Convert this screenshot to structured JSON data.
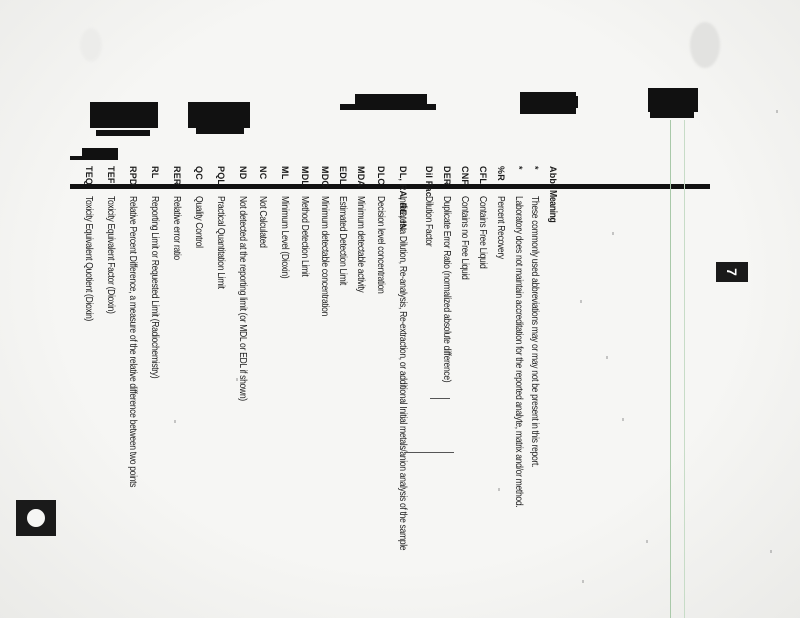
{
  "page": {
    "page_number": "7"
  },
  "table": {
    "header_abbr": "Abb",
    "header_meaning": "Meaning",
    "rows": [
      {
        "abbr": "*",
        "meaning": "These commonly used abbreviations may or may not be present in this report."
      },
      {
        "abbr": "*",
        "meaning": "Laboratory does not maintain accreditation for the reported analyte, matrix and/or method."
      },
      {
        "abbr": "%R",
        "meaning": "Percent Recovery"
      },
      {
        "abbr": "CFL",
        "meaning": "Contains Free Liquid"
      },
      {
        "abbr": "CNF",
        "meaning": "Contains no Free Liquid"
      },
      {
        "abbr": "DER",
        "meaning": "Duplicate Error Ratio (normalized absolute difference)"
      },
      {
        "abbr": "Dil Fac",
        "meaning": "Dilution Factor"
      },
      {
        "abbr": "DL, RA, RE, IN",
        "meaning": "Indicates a Dilution, Re-analysis, Re-extraction, or additional Initial metals/anion analysis of the sample"
      },
      {
        "abbr": "DLC",
        "meaning": "Decision level concentration"
      },
      {
        "abbr": "MDA",
        "meaning": "Minimum detectable activity"
      },
      {
        "abbr": "EDL",
        "meaning": "Estimated Detection Limit"
      },
      {
        "abbr": "MDC",
        "meaning": "Minimum detectable concentration"
      },
      {
        "abbr": "MDL",
        "meaning": "Method Detection Limit"
      },
      {
        "abbr": "ML",
        "meaning": "Minimum Level (Dioxin)"
      },
      {
        "abbr": "NC",
        "meaning": "Not Calculated"
      },
      {
        "abbr": "ND",
        "meaning": "Not detected at the reporting limit (or MDL or EDL if shown)"
      },
      {
        "abbr": "PQL",
        "meaning": "Practical Quantitation Limit"
      },
      {
        "abbr": "QC",
        "meaning": "Quality Control"
      },
      {
        "abbr": "RER",
        "meaning": "Relative error ratio"
      },
      {
        "abbr": "RL",
        "meaning": "Reporting Limit or Requested Limit (Radiochemistry)"
      },
      {
        "abbr": "RPD",
        "meaning": "Relative Percent Difference, a measure of the relative difference between two points"
      },
      {
        "abbr": "TEF",
        "meaning": "Toxicity Equivalent Factor (Dioxin)"
      },
      {
        "abbr": "TEQ",
        "meaning": "Toxicity Equivalent Quotient (Dioxin)"
      }
    ]
  }
}
